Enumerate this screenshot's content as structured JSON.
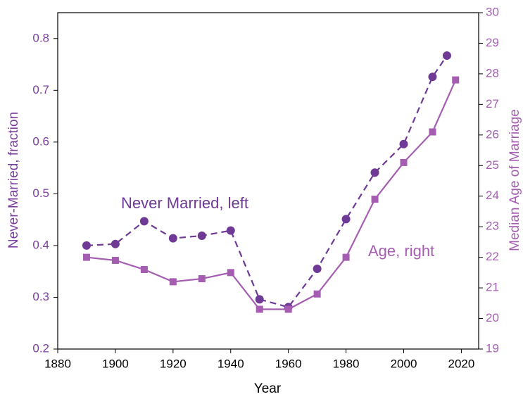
{
  "chart_data": {
    "type": "line",
    "xlabel": "Year",
    "ylabel": "Never-Married, fraction",
    "y2label": "Median Age of Marriage",
    "xlim": [
      1880,
      2026
    ],
    "xticks": [
      1880,
      1900,
      1920,
      1940,
      1960,
      1980,
      2000,
      2020
    ],
    "ylim": [
      0.2,
      0.85
    ],
    "yticks": [
      0.2,
      0.3,
      0.4,
      0.5,
      0.6,
      0.7,
      0.8
    ],
    "y2lim": [
      19,
      30
    ],
    "y2ticks": [
      19,
      20,
      21,
      22,
      23,
      24,
      25,
      26,
      27,
      28,
      29,
      30
    ],
    "ycolor": "#7a3f9e",
    "y2color": "#a55db2",
    "series": [
      {
        "name": "Never Married, left",
        "color": "#6f3a96",
        "marker": "circle",
        "dashed": true,
        "x": [
          1890,
          1900,
          1910,
          1920,
          1930,
          1940,
          1950,
          1960,
          1970,
          1980,
          1990,
          2000,
          2010,
          2015
        ],
        "values": [
          0.4,
          0.403,
          0.447,
          0.414,
          0.419,
          0.429,
          0.296,
          0.281,
          0.355,
          0.451,
          0.541,
          0.596,
          0.726,
          0.767
        ]
      },
      {
        "name": "Age, right",
        "color": "#a55db2",
        "marker": "square",
        "dashed": false,
        "axis": "y2",
        "x": [
          1890,
          1900,
          1910,
          1920,
          1930,
          1940,
          1950,
          1960,
          1970,
          1980,
          1990,
          2000,
          2010,
          2018
        ],
        "values": [
          22.0,
          21.9,
          21.6,
          21.2,
          21.3,
          21.5,
          20.3,
          20.3,
          20.8,
          22.0,
          23.9,
          25.1,
          26.1,
          27.8
        ]
      }
    ]
  }
}
